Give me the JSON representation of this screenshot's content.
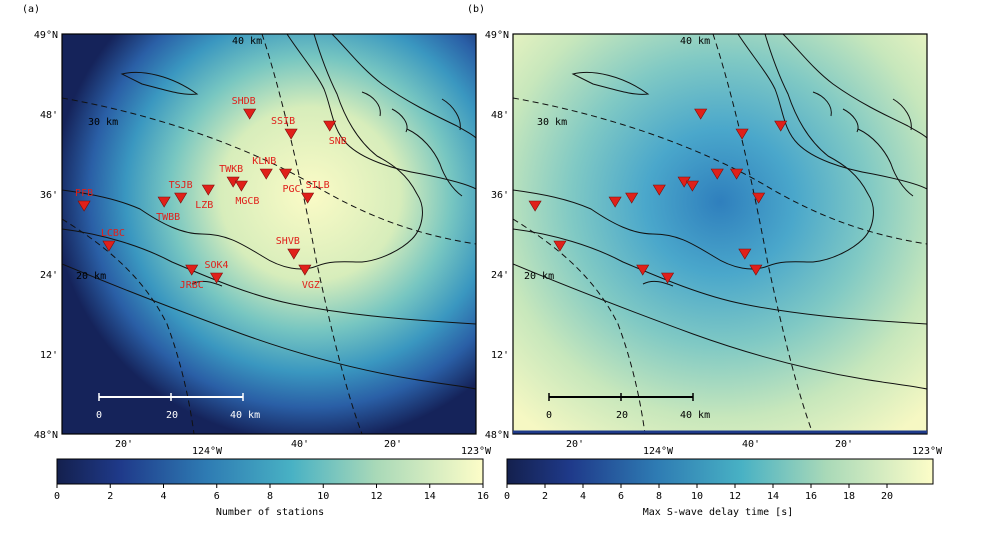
{
  "panels": [
    {
      "letter": "(a)",
      "colorbar": {
        "title": "Number of stations",
        "ticks": [
          "0",
          "2",
          "4",
          "6",
          "8",
          "10",
          "12",
          "14",
          "16"
        ]
      },
      "stations": [
        {
          "name": "PFB",
          "lon": -124.42,
          "lat": 48.57
        },
        {
          "name": "LCBC",
          "lon": -124.33,
          "lat": 48.47
        },
        {
          "name": "TWBB",
          "lon": -124.13,
          "lat": 48.58
        },
        {
          "name": "TSJB",
          "lon": -124.07,
          "lat": 48.59
        },
        {
          "name": "LZB",
          "lon": -123.97,
          "lat": 48.61
        },
        {
          "name": "TWKB",
          "lon": -123.88,
          "lat": 48.63
        },
        {
          "name": "MGCB",
          "lon": -123.85,
          "lat": 48.62
        },
        {
          "name": "SHDB",
          "lon": -123.82,
          "lat": 48.8
        },
        {
          "name": "KLNB",
          "lon": -123.76,
          "lat": 48.65
        },
        {
          "name": "PGC",
          "lon": -123.69,
          "lat": 48.65
        },
        {
          "name": "SSIB",
          "lon": -123.67,
          "lat": 48.75
        },
        {
          "name": "SNB",
          "lon": -123.53,
          "lat": 48.77
        },
        {
          "name": "SILB",
          "lon": -123.61,
          "lat": 48.59
        },
        {
          "name": "SHVB",
          "lon": -123.66,
          "lat": 48.45
        },
        {
          "name": "VGZ",
          "lon": -123.62,
          "lat": 48.41
        },
        {
          "name": "SOK4",
          "lon": -123.94,
          "lat": 48.39
        },
        {
          "name": "JRBC",
          "lon": -124.03,
          "lat": 48.41
        }
      ]
    },
    {
      "letter": "(b)",
      "colorbar": {
        "title": "Max S-wave delay time [s]",
        "ticks": [
          "0",
          "2",
          "4",
          "6",
          "8",
          "10",
          "12",
          "14",
          "16",
          "18",
          "20"
        ]
      }
    }
  ],
  "axes": {
    "lat_labels": [
      "49°N",
      "48'",
      "36'",
      "24'",
      "12'",
      "48°N"
    ],
    "lon_labels": [
      "20'",
      "124°W",
      "40'",
      "20'",
      "123°W"
    ]
  },
  "contours": [
    {
      "label": "40 km"
    },
    {
      "label": "30 km"
    },
    {
      "label": "20 km"
    }
  ],
  "scale_bar": {
    "ticks": [
      "0",
      "20",
      "40 km"
    ]
  }
}
